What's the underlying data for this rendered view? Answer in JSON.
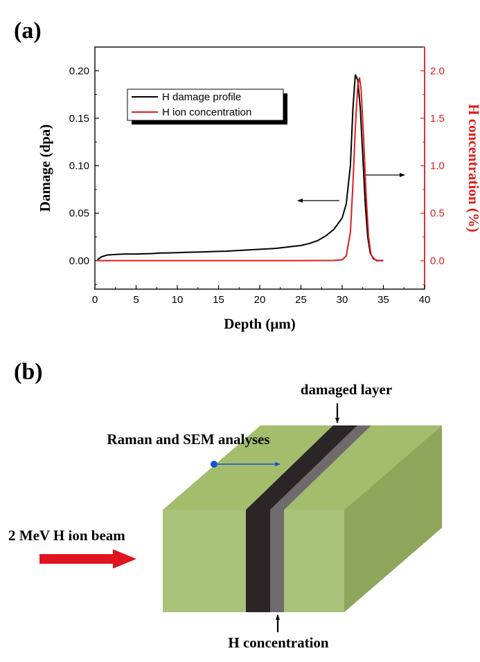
{
  "panel_a": {
    "label": "(a)",
    "legend": {
      "damage": "H damage profile",
      "concentration": "H ion concentration"
    }
  },
  "panel_b": {
    "label": "(b)",
    "damaged_layer": "damaged layer",
    "raman": "Raman and SEM analyses",
    "beam": "2 MeV H ion beam",
    "h_conc": "H concentration"
  },
  "colors": {
    "damage": "#000000",
    "concentration": "#e01b1b",
    "arrow_blue": "#1a4fd6",
    "beam": "#e0141e",
    "block_front": "#a9c37a",
    "block_top": "#a3bd6d",
    "block_side": "#8fa55b",
    "layer_dark": "#2a2526",
    "layer_gray": "#6f6a6b"
  },
  "chart_data": {
    "type": "line",
    "xlabel": "Depth (μm)",
    "ylabel": "Damage (dpa)",
    "y2label": "H concentration (%)",
    "xlim": [
      0,
      40
    ],
    "ylim": [
      -0.03,
      0.225
    ],
    "y2lim": [
      -0.3,
      2.25
    ],
    "x_ticks": [
      0,
      5,
      10,
      15,
      20,
      25,
      30,
      35,
      40
    ],
    "y_ticks": [
      0.0,
      0.05,
      0.1,
      0.15,
      0.2
    ],
    "y_tick_labels": [
      "0.00",
      "0.05",
      "0.10",
      "0.15",
      "0.20"
    ],
    "y2_ticks": [
      0.0,
      0.5,
      1.0,
      1.5,
      2.0
    ],
    "y2_tick_labels": [
      "0.0",
      "0.5",
      "1.0",
      "1.5",
      "2.0"
    ],
    "series": [
      {
        "name": "H damage profile",
        "axis": "left",
        "x": [
          0.3,
          0.8,
          1.5,
          2.5,
          3.5,
          5,
          6,
          7,
          8,
          9,
          10,
          11,
          12,
          13,
          14,
          15,
          16,
          17,
          18,
          19,
          20,
          21,
          22,
          23,
          24,
          25,
          26,
          27,
          28,
          29,
          30,
          30.5,
          31,
          31.3,
          31.6,
          31.9,
          32.2,
          32.5,
          32.8,
          33.1,
          33.4,
          33.8,
          34.2,
          34.6,
          35
        ],
        "y": [
          0.001,
          0.004,
          0.006,
          0.0065,
          0.007,
          0.007,
          0.0072,
          0.0075,
          0.008,
          0.0082,
          0.0085,
          0.0088,
          0.009,
          0.0092,
          0.0095,
          0.0098,
          0.01,
          0.0105,
          0.011,
          0.0115,
          0.012,
          0.0125,
          0.013,
          0.014,
          0.015,
          0.016,
          0.018,
          0.021,
          0.026,
          0.033,
          0.045,
          0.06,
          0.1,
          0.16,
          0.196,
          0.19,
          0.16,
          0.11,
          0.06,
          0.025,
          0.008,
          0.002,
          0.0,
          0.0,
          0.0
        ]
      },
      {
        "name": "H ion concentration",
        "axis": "right",
        "x": [
          0.3,
          5,
          10,
          15,
          20,
          25,
          29,
          30,
          30.5,
          31,
          31.3,
          31.6,
          31.9,
          32.1,
          32.3,
          32.6,
          32.9,
          33.2,
          33.5,
          34,
          34.5,
          35
        ],
        "y": [
          0.0,
          0.0,
          0.0,
          0.0,
          0.0,
          0.0,
          0.002,
          0.01,
          0.05,
          0.3,
          0.8,
          1.4,
          1.85,
          1.93,
          1.8,
          1.3,
          0.7,
          0.25,
          0.06,
          0.01,
          0.0,
          0.0
        ]
      }
    ]
  }
}
